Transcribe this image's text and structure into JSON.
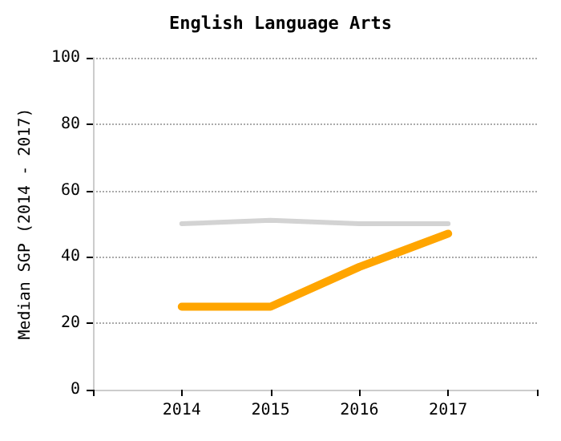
{
  "chart_data": {
    "type": "line",
    "title": "English Language Arts",
    "ylabel": "Median SGP (2014 - 2017)",
    "x": [
      2014,
      2015,
      2016,
      2017
    ],
    "series": [
      {
        "color": "#d3d3d3",
        "values": [
          50,
          51,
          50,
          50
        ]
      },
      {
        "color": "#ffa500",
        "values": [
          25,
          25,
          37,
          47
        ]
      }
    ],
    "xlim": [
      2013,
      2018
    ],
    "xticks": [
      {
        "value": 2013,
        "label": null
      },
      2014,
      2015,
      2016,
      2017,
      {
        "value": 2018,
        "label": null
      }
    ],
    "ylim": [
      0,
      100
    ],
    "yticks": [
      0,
      20,
      40,
      60,
      80,
      100
    ],
    "grid": "y",
    "marker": "none",
    "line_style": "solid"
  }
}
